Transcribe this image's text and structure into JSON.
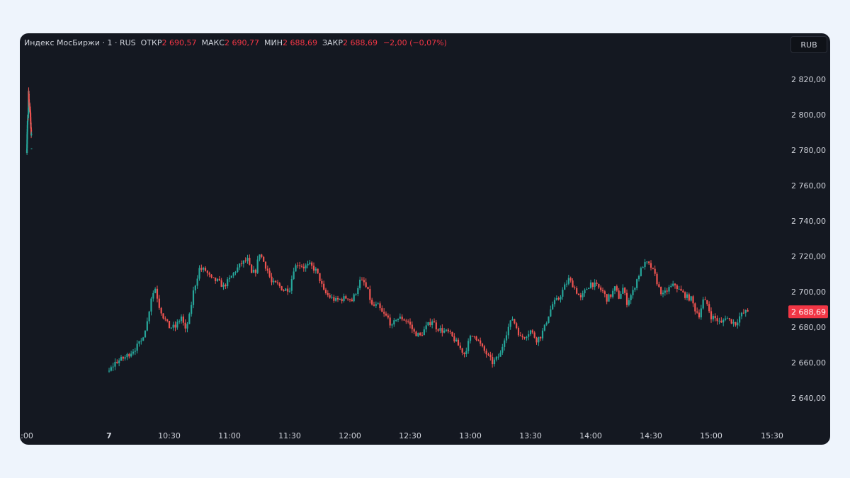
{
  "header": {
    "title": "Индекс МосБиржи · 1 · RUS",
    "open_label": "ОТКР",
    "open_value": "2 690,57",
    "high_label": "МАКС",
    "high_value": "2 690,77",
    "low_label": "МИН",
    "low_value": "2 688,69",
    "close_label": "ЗАКР",
    "close_value": "2 688,69",
    "change": "−2,00 (−0,07%)"
  },
  "currency_button": "RUB",
  "price_tag": "2 688,69",
  "colors": {
    "up": "#26a69a",
    "down": "#ef5350",
    "tag_bg": "#f23645"
  },
  "chart_data": {
    "type": "candlestick",
    "ylim": [
      2630,
      2830
    ],
    "yticks": [
      {
        "value": 2820,
        "label": "2 820,00"
      },
      {
        "value": 2800,
        "label": "2 800,00"
      },
      {
        "value": 2780,
        "label": "2 780,00"
      },
      {
        "value": 2760,
        "label": "2 760,00"
      },
      {
        "value": 2740,
        "label": "2 740,00"
      },
      {
        "value": 2720,
        "label": "2 720,00"
      },
      {
        "value": 2700,
        "label": "2 700,00"
      },
      {
        "value": 2680,
        "label": "2 680,00"
      },
      {
        "value": 2660,
        "label": "2 660,00"
      },
      {
        "value": 2640,
        "label": "2 640,00"
      }
    ],
    "xticks": [
      {
        "label": ":00",
        "time": "6 18:00"
      },
      {
        "label": "7",
        "time": "7 10:00",
        "bold": true
      },
      {
        "label": "10:30",
        "time": "7 10:30"
      },
      {
        "label": "11:00",
        "time": "7 11:00"
      },
      {
        "label": "11:30",
        "time": "7 11:30"
      },
      {
        "label": "12:00",
        "time": "7 12:00"
      },
      {
        "label": "12:30",
        "time": "7 12:30"
      },
      {
        "label": "13:00",
        "time": "7 13:00"
      },
      {
        "label": "13:30",
        "time": "7 13:30"
      },
      {
        "label": "14:00",
        "time": "7 14:00"
      },
      {
        "label": "14:30",
        "time": "7 14:30"
      },
      {
        "label": "15:00",
        "time": "7 15:00"
      },
      {
        "label": "15:30",
        "time": "7 15:30"
      }
    ],
    "last_price": 2688.69,
    "sessions": [
      {
        "start": "6 18:00",
        "anchors": [
          [
            0,
            2780
          ],
          [
            4,
            2788
          ],
          [
            8,
            2795
          ],
          [
            12,
            2800
          ],
          [
            16,
            2799
          ],
          [
            18,
            2804
          ],
          [
            20,
            2814
          ],
          [
            24,
            2807
          ],
          [
            29,
            2805
          ],
          [
            33,
            2803
          ],
          [
            37,
            2804
          ],
          [
            40,
            2801
          ],
          [
            44,
            2796
          ],
          [
            48,
            2791
          ],
          [
            52,
            2788
          ]
        ],
        "trailing": [
          {
            "offset": 54,
            "value": 2781
          }
        ]
      },
      {
        "start": "7 10:00",
        "anchors": [
          [
            0,
            2655
          ],
          [
            3,
            2660
          ],
          [
            8,
            2663
          ],
          [
            13,
            2668
          ],
          [
            16,
            2672
          ],
          [
            19,
            2683
          ],
          [
            21,
            2697
          ],
          [
            23,
            2702
          ],
          [
            25,
            2692
          ],
          [
            27,
            2686
          ],
          [
            30,
            2680
          ],
          [
            33,
            2680
          ],
          [
            36,
            2686
          ],
          [
            38,
            2678
          ],
          [
            40,
            2686
          ],
          [
            42,
            2700
          ],
          [
            45,
            2713
          ],
          [
            48,
            2712
          ],
          [
            51,
            2707
          ],
          [
            54,
            2706
          ],
          [
            57,
            2703
          ],
          [
            60,
            2707
          ],
          [
            63,
            2712
          ],
          [
            66,
            2716
          ],
          [
            69,
            2718
          ],
          [
            71,
            2710
          ],
          [
            73,
            2712
          ],
          [
            75,
            2722
          ],
          [
            77,
            2717
          ],
          [
            79,
            2712
          ],
          [
            81,
            2705
          ],
          [
            84,
            2704
          ],
          [
            87,
            2701
          ],
          [
            90,
            2702
          ],
          [
            92,
            2713
          ],
          [
            94,
            2716
          ],
          [
            97,
            2714
          ],
          [
            100,
            2715
          ],
          [
            103,
            2712
          ],
          [
            105,
            2707
          ],
          [
            107,
            2700
          ],
          [
            110,
            2697
          ],
          [
            113,
            2695
          ],
          [
            116,
            2696
          ],
          [
            119,
            2697
          ],
          [
            121,
            2695
          ],
          [
            123,
            2700
          ],
          [
            125,
            2706
          ],
          [
            127,
            2705
          ],
          [
            129,
            2700
          ],
          [
            131,
            2692
          ],
          [
            134,
            2692
          ],
          [
            136,
            2688
          ],
          [
            139,
            2685
          ],
          [
            141,
            2680
          ],
          [
            143,
            2685
          ],
          [
            146,
            2685
          ],
          [
            149,
            2683
          ],
          [
            152,
            2677
          ],
          [
            155,
            2675
          ],
          [
            158,
            2680
          ],
          [
            161,
            2684
          ],
          [
            163,
            2680
          ],
          [
            166,
            2678
          ],
          [
            169,
            2677
          ],
          [
            172,
            2673
          ],
          [
            175,
            2668
          ],
          [
            177,
            2665
          ],
          [
            180,
            2674
          ],
          [
            182,
            2676
          ],
          [
            184,
            2672
          ],
          [
            186,
            2668
          ],
          [
            188,
            2665
          ],
          [
            191,
            2660
          ],
          [
            193,
            2662
          ],
          [
            195,
            2665
          ],
          [
            197,
            2674
          ],
          [
            199,
            2680
          ],
          [
            201,
            2685
          ],
          [
            203,
            2680
          ],
          [
            205,
            2674
          ],
          [
            207,
            2675
          ],
          [
            210,
            2678
          ],
          [
            213,
            2673
          ],
          [
            215,
            2675
          ],
          [
            217,
            2680
          ],
          [
            219,
            2687
          ],
          [
            221,
            2693
          ],
          [
            224,
            2696
          ],
          [
            227,
            2703
          ],
          [
            229,
            2707
          ],
          [
            231,
            2704
          ],
          [
            233,
            2700
          ],
          [
            235,
            2696
          ],
          [
            238,
            2702
          ],
          [
            240,
            2705
          ],
          [
            243,
            2703
          ],
          [
            246,
            2700
          ],
          [
            248,
            2696
          ],
          [
            250,
            2698
          ],
          [
            252,
            2702
          ],
          [
            254,
            2697
          ],
          [
            256,
            2702
          ],
          [
            258,
            2694
          ],
          [
            261,
            2700
          ],
          [
            263,
            2707
          ],
          [
            266,
            2715
          ],
          [
            268,
            2716
          ],
          [
            270,
            2714
          ],
          [
            272,
            2709
          ],
          [
            274,
            2702
          ],
          [
            276,
            2698
          ],
          [
            279,
            2702
          ],
          [
            282,
            2704
          ],
          [
            284,
            2701
          ],
          [
            286,
            2699
          ],
          [
            288,
            2697
          ],
          [
            290,
            2696
          ],
          [
            292,
            2690
          ],
          [
            294,
            2687
          ],
          [
            296,
            2695
          ],
          [
            298,
            2693
          ],
          [
            300,
            2686
          ],
          [
            302,
            2685
          ],
          [
            305,
            2682
          ],
          [
            307,
            2686
          ],
          [
            309,
            2684
          ],
          [
            312,
            2682
          ],
          [
            314,
            2686
          ],
          [
            316,
            2688
          ],
          [
            318,
            2689
          ]
        ]
      }
    ]
  }
}
